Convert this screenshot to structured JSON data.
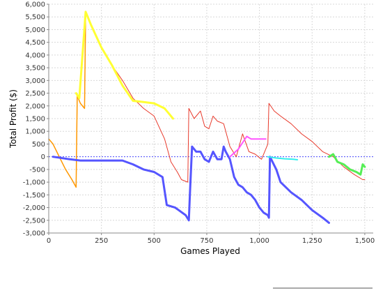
{
  "chart_data": {
    "type": "line",
    "xlabel": "Games Played",
    "ylabel": "Total Profit ($)",
    "xlim": [
      0,
      1540
    ],
    "ylim": [
      -3000,
      6000
    ],
    "x_ticks": [
      {
        "value": 0,
        "label": "0"
      },
      {
        "value": 250,
        "label": "250"
      },
      {
        "value": 500,
        "label": "500"
      },
      {
        "value": 750,
        "label": "750"
      },
      {
        "value": 1000,
        "label": "1,000"
      },
      {
        "value": 1250,
        "label": "1,250"
      },
      {
        "value": 1500,
        "label": "1,500"
      }
    ],
    "y_ticks": [
      {
        "value": -3000,
        "label": "-3,000"
      },
      {
        "value": -2500,
        "label": "-2,500"
      },
      {
        "value": -2000,
        "label": "-2,000"
      },
      {
        "value": -1500,
        "label": "-1,500"
      },
      {
        "value": -1000,
        "label": "-1,000"
      },
      {
        "value": -500,
        "label": "-500"
      },
      {
        "value": 0,
        "label": "0"
      },
      {
        "value": 500,
        "label": "500"
      },
      {
        "value": 1000,
        "label": "1,000"
      },
      {
        "value": 1500,
        "label": "1,500"
      },
      {
        "value": 2000,
        "label": "2,000"
      },
      {
        "value": 2500,
        "label": "2,500"
      },
      {
        "value": 3000,
        "label": "3,000"
      },
      {
        "value": 3500,
        "label": "3,500"
      },
      {
        "value": 4000,
        "label": "4,000"
      },
      {
        "value": 4500,
        "label": "4,500"
      },
      {
        "value": 5000,
        "label": "5,000"
      },
      {
        "value": 5500,
        "label": "5,500"
      },
      {
        "value": 6000,
        "label": "6,000"
      }
    ],
    "grid": true,
    "zero_line": true,
    "series": [
      {
        "color": "#e8392b",
        "x": [
          0,
          20,
          50,
          80,
          110,
          130,
          135,
          150,
          170,
          175,
          200,
          250,
          300,
          350,
          400,
          450,
          500,
          550,
          580,
          610,
          630,
          660,
          665,
          690,
          720,
          740,
          760,
          780,
          800,
          830,
          860,
          890,
          920,
          950,
          980,
          1010,
          1040,
          1045,
          1070,
          1100,
          1150,
          1200,
          1250,
          1300,
          1350,
          1400,
          1450,
          1490,
          1500
        ],
        "y": [
          700,
          500,
          0,
          -500,
          -900,
          -1200,
          2400,
          2100,
          1900,
          5700,
          5200,
          4300,
          3600,
          3000,
          2300,
          1900,
          1600,
          700,
          -200,
          -600,
          -900,
          -1000,
          1900,
          1500,
          1800,
          1200,
          1100,
          1600,
          1400,
          1300,
          400,
          0,
          900,
          200,
          100,
          -100,
          500,
          2100,
          1800,
          1600,
          1300,
          900,
          600,
          200,
          0,
          -400,
          -700,
          -900,
          -900
        ]
      },
      {
        "color": "#ff9900",
        "x": [
          0,
          20,
          50,
          80,
          110,
          130,
          135,
          150,
          170,
          175,
          200,
          250
        ],
        "y": [
          700,
          500,
          0,
          -500,
          -900,
          -1200,
          2400,
          2100,
          1900,
          5700,
          5200,
          4300
        ]
      },
      {
        "color": "#ffff33",
        "x": [
          130,
          145,
          175,
          200,
          250,
          300,
          350,
          400,
          450,
          500,
          550,
          570,
          590
        ],
        "y": [
          2500,
          2300,
          5700,
          5200,
          4300,
          3600,
          2800,
          2200,
          2150,
          2100,
          1900,
          1700,
          1500
        ]
      },
      {
        "color": "#5555ff",
        "x": [
          20,
          100,
          150,
          200,
          250,
          300,
          350,
          400,
          450,
          500,
          540,
          560,
          600,
          650,
          665,
          670,
          680,
          700,
          720,
          740,
          760,
          780,
          800,
          820,
          830,
          840,
          860,
          880,
          900,
          920,
          940,
          960,
          980,
          1000,
          1020,
          1040,
          1045,
          1050,
          1080,
          1100,
          1150,
          1200,
          1250,
          1300,
          1330
        ],
        "y": [
          0,
          -100,
          -150,
          -150,
          -150,
          -150,
          -150,
          -300,
          -500,
          -600,
          -800,
          -1900,
          -2000,
          -2300,
          -2500,
          -1500,
          400,
          200,
          200,
          -100,
          -200,
          200,
          -100,
          -100,
          400,
          200,
          -100,
          -800,
          -1100,
          -1200,
          -1400,
          -1500,
          -1700,
          -2000,
          -2200,
          -2300,
          -2400,
          0,
          -500,
          -1000,
          -1400,
          -1700,
          -2100,
          -2400,
          -2600
        ]
      },
      {
        "color": "#ff55ff",
        "x": [
          860,
          900,
          940,
          960,
          980,
          1030
        ],
        "y": [
          0,
          300,
          800,
          700,
          700,
          700
        ]
      },
      {
        "color": "#33eeee",
        "x": [
          1040,
          1080,
          1120,
          1160,
          1180
        ],
        "y": [
          0,
          -50,
          -80,
          -100,
          -120
        ]
      },
      {
        "color": "#55ee55",
        "x": [
          1330,
          1350,
          1370,
          1400,
          1430,
          1460,
          1480,
          1490,
          1500
        ],
        "y": [
          0,
          100,
          -200,
          -300,
          -500,
          -600,
          -700,
          -300,
          -400
        ]
      }
    ]
  }
}
